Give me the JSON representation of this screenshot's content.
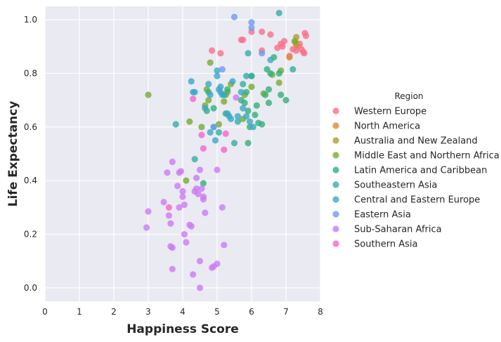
{
  "chart_data": {
    "type": "scatter",
    "title": "",
    "xlabel": "Happiness Score",
    "ylabel": "Life Expectancy",
    "xlim": [
      0,
      8
    ],
    "ylim": [
      -0.05,
      1.05
    ],
    "x_ticks": [
      0,
      1,
      2,
      3,
      4,
      5,
      6,
      7,
      8
    ],
    "y_ticks": [
      0.0,
      0.2,
      0.4,
      0.6,
      0.8,
      1.0
    ],
    "x_tick_labels": [
      "0",
      "1",
      "2",
      "3",
      "4",
      "5",
      "6",
      "7",
      "8"
    ],
    "y_tick_labels": [
      "0.0",
      "0.2",
      "0.4",
      "0.6",
      "0.8",
      "1.0"
    ],
    "grid": true,
    "background": "#eaeaf2",
    "legend_title": "Region",
    "legend_placement": "right",
    "series": [
      {
        "name": "Western Europe",
        "color": "#f77189",
        "points": [
          [
            7.55,
            0.95
          ],
          [
            7.58,
            0.94
          ],
          [
            7.5,
            0.88
          ],
          [
            7.53,
            0.875
          ],
          [
            7.45,
            0.89
          ],
          [
            7.4,
            0.91
          ],
          [
            7.35,
            0.9
          ],
          [
            7.3,
            0.885
          ],
          [
            7.2,
            0.89
          ],
          [
            7.1,
            0.865
          ],
          [
            6.95,
            0.92
          ],
          [
            6.9,
            0.9
          ],
          [
            6.85,
            0.91
          ],
          [
            6.75,
            0.895
          ],
          [
            6.55,
            0.945
          ],
          [
            6.3,
            0.955
          ],
          [
            6.3,
            0.885
          ],
          [
            6.0,
            0.955
          ],
          [
            5.7,
            0.925
          ],
          [
            5.75,
            0.925
          ],
          [
            5.1,
            0.875
          ],
          [
            4.85,
            0.885
          ]
        ]
      },
      {
        "name": "North America",
        "color": "#dc8932",
        "points": [
          [
            7.3,
            0.905
          ],
          [
            7.1,
            0.86
          ]
        ]
      },
      {
        "name": "Australia and New Zealand",
        "color": "#ae9d31",
        "points": [
          [
            7.3,
            0.935
          ],
          [
            7.28,
            0.915
          ]
        ]
      },
      {
        "name": "Middle East and Northern Africa",
        "color": "#77ab31",
        "points": [
          [
            7.25,
            0.92
          ],
          [
            6.85,
            0.81
          ],
          [
            6.8,
            0.765
          ],
          [
            6.6,
            0.795
          ],
          [
            6.35,
            0.725
          ],
          [
            6.0,
            0.75
          ],
          [
            5.8,
            0.72
          ],
          [
            5.75,
            0.63
          ],
          [
            5.4,
            0.76
          ],
          [
            5.3,
            0.73
          ],
          [
            5.25,
            0.72
          ],
          [
            5.2,
            0.695
          ],
          [
            5.05,
            0.61
          ],
          [
            4.8,
            0.84
          ],
          [
            4.75,
            0.7
          ],
          [
            4.7,
            0.74
          ],
          [
            4.65,
            0.68
          ],
          [
            4.55,
            0.6
          ],
          [
            4.2,
            0.62
          ],
          [
            4.1,
            0.4
          ],
          [
            3.0,
            0.72
          ]
        ]
      },
      {
        "name": "Latin America and Caribbean",
        "color": "#33b07a",
        "points": [
          [
            7.0,
            0.7
          ],
          [
            6.85,
            0.72
          ],
          [
            6.8,
            0.8
          ],
          [
            6.65,
            0.86
          ],
          [
            6.55,
            0.8
          ],
          [
            6.5,
            0.74
          ],
          [
            6.5,
            0.69
          ],
          [
            6.45,
            0.815
          ],
          [
            6.4,
            0.72
          ],
          [
            6.3,
            0.61
          ],
          [
            6.2,
            0.615
          ],
          [
            6.15,
            0.68
          ],
          [
            6.1,
            0.645
          ],
          [
            6.0,
            0.79
          ],
          [
            5.95,
            0.6
          ],
          [
            5.9,
            0.54
          ],
          [
            5.9,
            0.66
          ],
          [
            5.85,
            0.73
          ],
          [
            5.8,
            0.69
          ],
          [
            5.7,
            0.7
          ],
          [
            5.3,
            0.74
          ],
          [
            5.25,
            0.65
          ],
          [
            4.9,
            0.67
          ],
          [
            4.75,
            0.73
          ],
          [
            4.7,
            0.66
          ],
          [
            4.6,
            0.39
          ]
        ]
      },
      {
        "name": "Southeastern Asia",
        "color": "#36ada4",
        "points": [
          [
            7.2,
            0.815
          ],
          [
            6.8,
            1.025
          ],
          [
            6.0,
            0.79
          ],
          [
            5.9,
            0.875
          ],
          [
            5.85,
            0.79
          ],
          [
            5.75,
            0.76
          ],
          [
            5.6,
            0.62
          ],
          [
            5.5,
            0.54
          ],
          [
            5.05,
            0.58
          ],
          [
            4.35,
            0.48
          ],
          [
            3.8,
            0.61
          ]
        ]
      },
      {
        "name": "Central and Eastern Europe",
        "color": "#38a9c5",
        "points": [
          [
            6.55,
            0.85
          ],
          [
            6.05,
            0.6
          ],
          [
            5.95,
            0.62
          ],
          [
            5.85,
            0.64
          ],
          [
            5.75,
            0.67
          ],
          [
            5.7,
            0.73
          ],
          [
            5.6,
            0.64
          ],
          [
            5.45,
            0.77
          ],
          [
            5.4,
            0.63
          ],
          [
            5.35,
            0.64
          ],
          [
            5.3,
            0.65
          ],
          [
            5.2,
            0.72
          ],
          [
            5.15,
            0.72
          ],
          [
            5.1,
            0.75
          ],
          [
            5.1,
            0.73
          ],
          [
            5.05,
            0.74
          ],
          [
            5.0,
            0.79
          ],
          [
            5.0,
            0.81
          ],
          [
            4.95,
            0.55
          ],
          [
            4.9,
            0.6
          ],
          [
            4.8,
            0.72
          ],
          [
            4.8,
            0.58
          ],
          [
            4.75,
            0.76
          ],
          [
            4.65,
            0.67
          ],
          [
            4.35,
            0.73
          ],
          [
            4.3,
            0.73
          ],
          [
            4.25,
            0.77
          ]
        ]
      },
      {
        "name": "Eastern Asia",
        "color": "#6e9bf4",
        "points": [
          [
            6.0,
            0.99
          ],
          [
            6.0,
            0.97
          ],
          [
            5.5,
            1.01
          ],
          [
            6.3,
            0.875
          ],
          [
            5.15,
            0.815
          ],
          [
            4.9,
            0.6
          ]
        ]
      },
      {
        "name": "Sub-Saharan Africa",
        "color": "#cc7af4",
        "points": [
          [
            5.55,
            0.71
          ],
          [
            5.2,
            0.16
          ],
          [
            5.15,
            0.3
          ],
          [
            5.0,
            0.09
          ],
          [
            5.0,
            0.44
          ],
          [
            4.9,
            0.08
          ],
          [
            4.85,
            0.075
          ],
          [
            4.65,
            0.28
          ],
          [
            4.6,
            0.33
          ],
          [
            4.6,
            0.34
          ],
          [
            4.55,
            0.37
          ],
          [
            4.5,
            0.44
          ],
          [
            4.5,
            0.1
          ],
          [
            4.5,
            0.0
          ],
          [
            4.45,
            0.35
          ],
          [
            4.4,
            0.37
          ],
          [
            4.4,
            0.41
          ],
          [
            4.35,
            0.36
          ],
          [
            4.3,
            0.05
          ],
          [
            4.25,
            0.23
          ],
          [
            4.2,
            0.235
          ],
          [
            4.1,
            0.17
          ],
          [
            4.05,
            0.31
          ],
          [
            4.05,
            0.2
          ],
          [
            4.0,
            0.34
          ],
          [
            4.0,
            0.36
          ],
          [
            3.95,
            0.435
          ],
          [
            3.9,
            0.43
          ],
          [
            3.9,
            0.3
          ],
          [
            3.85,
            0.38
          ],
          [
            3.7,
            0.07
          ],
          [
            3.7,
            0.15
          ],
          [
            3.7,
            0.47
          ],
          [
            3.65,
            0.24
          ],
          [
            3.6,
            0.27
          ],
          [
            3.55,
            0.43
          ],
          [
            3.45,
            0.32
          ],
          [
            3.0,
            0.285
          ],
          [
            2.95,
            0.225
          ],
          [
            3.65,
            0.155
          ]
        ]
      },
      {
        "name": "Southern Asia",
        "color": "#f565cc",
        "points": [
          [
            5.25,
            0.575
          ],
          [
            5.2,
            0.515
          ],
          [
            4.6,
            0.52
          ],
          [
            4.55,
            0.57
          ],
          [
            4.3,
            0.705
          ],
          [
            3.6,
            0.3
          ]
        ]
      }
    ]
  }
}
